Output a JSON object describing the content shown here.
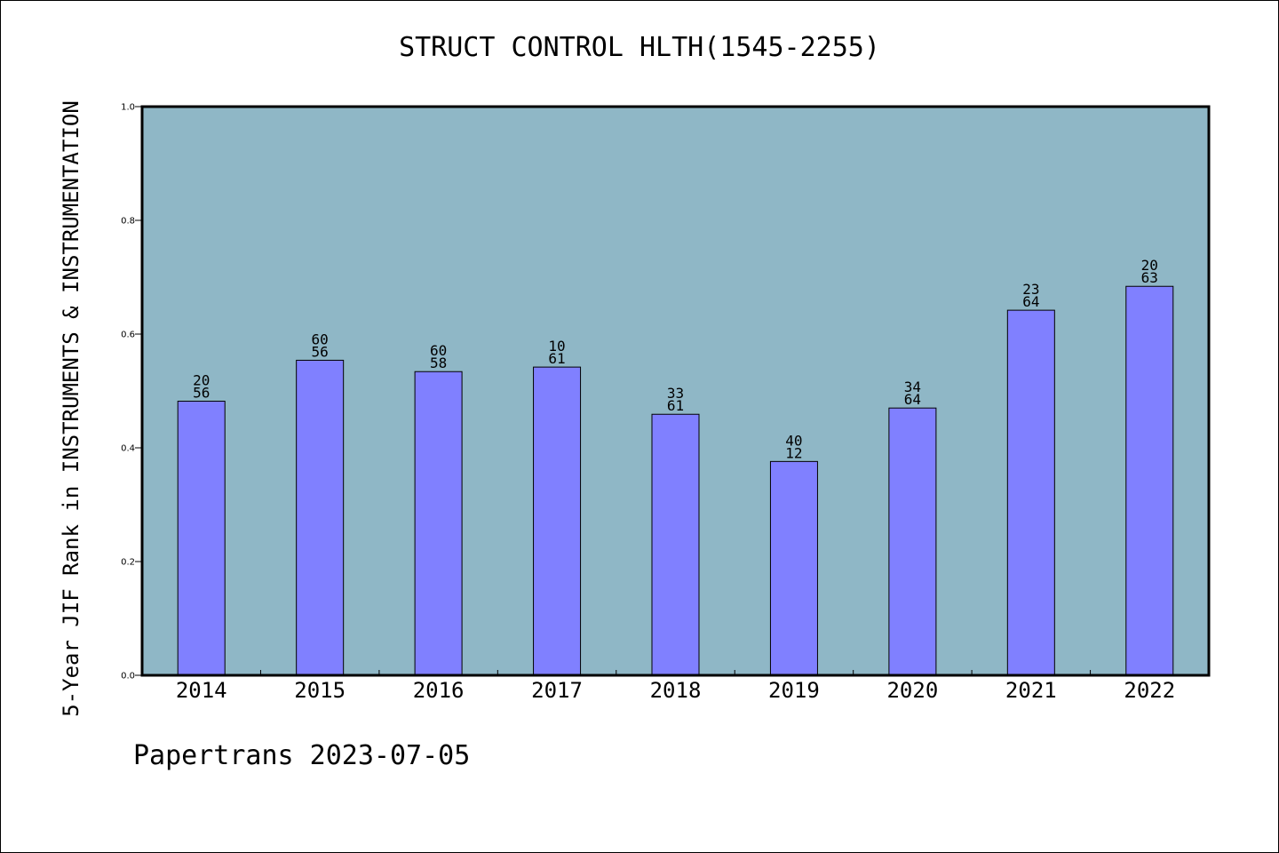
{
  "chart_data": {
    "type": "bar",
    "title": "STRUCT CONTROL HLTH(1545-2255)",
    "ylabel": "5-Year JIF Rank in INSTRUMENTS & INSTRUMENTATION",
    "xlabel": "",
    "ylim": [
      0,
      1.0
    ],
    "yticks": [
      "0.0",
      "0.2",
      "0.4",
      "0.6",
      "0.8",
      "1.0"
    ],
    "categories": [
      "2014",
      "2015",
      "2016",
      "2017",
      "2018",
      "2019",
      "2020",
      "2021",
      "2022"
    ],
    "values": [
      0.482,
      0.554,
      0.534,
      0.542,
      0.459,
      0.376,
      0.47,
      0.642,
      0.684
    ],
    "bar_labels": [
      [
        "20",
        "56"
      ],
      [
        "60",
        "56"
      ],
      [
        "60",
        "58"
      ],
      [
        "10",
        "61"
      ],
      [
        "33",
        "61"
      ],
      [
        "40",
        "12"
      ],
      [
        "34",
        "64"
      ],
      [
        "23",
        "64"
      ],
      [
        "20",
        "63"
      ]
    ],
    "colors": {
      "plot_bg": "#8fb7c6",
      "bar": "#8080ff"
    },
    "grid": false,
    "legend": "none"
  },
  "footer": "Papertrans 2023-07-05"
}
